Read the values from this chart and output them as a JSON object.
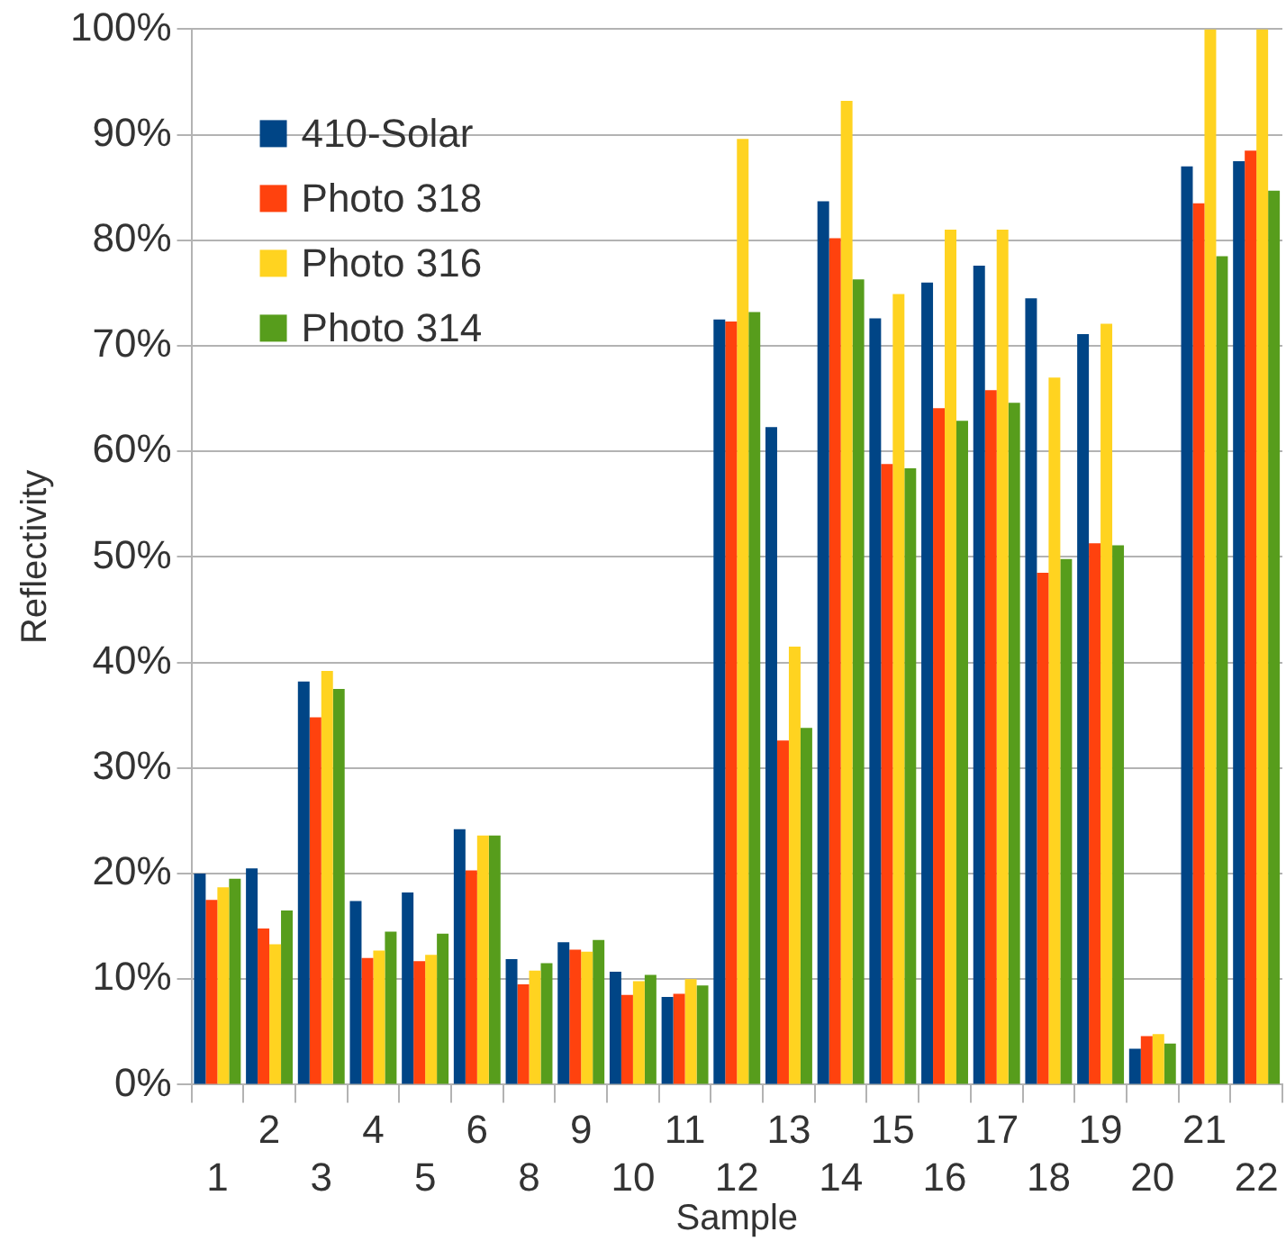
{
  "chart_data": {
    "type": "bar",
    "xlabel": "Sample",
    "ylabel": "Reflectivity",
    "categories": [
      "1",
      "2",
      "3",
      "4",
      "5",
      "6",
      "8",
      "9",
      "10",
      "11",
      "12",
      "13",
      "14",
      "15",
      "16",
      "17",
      "18",
      "19",
      "20",
      "21",
      "22"
    ],
    "series": [
      {
        "name": "410-Solar",
        "color": "#004586",
        "values": [
          20.0,
          20.5,
          38.2,
          17.4,
          18.2,
          24.2,
          11.9,
          13.5,
          10.7,
          8.3,
          72.5,
          62.3,
          83.7,
          72.6,
          76.0,
          77.6,
          74.5,
          71.1,
          3.4,
          87.0,
          87.5
        ]
      },
      {
        "name": "Photo 318",
        "color": "#ff420e",
        "values": [
          17.5,
          14.8,
          34.8,
          12.0,
          11.7,
          20.3,
          9.5,
          12.8,
          8.5,
          8.6,
          72.3,
          32.6,
          80.2,
          58.8,
          64.1,
          65.8,
          48.5,
          51.3,
          4.6,
          83.5,
          88.5
        ]
      },
      {
        "name": "Photo 316",
        "color": "#ffd320",
        "values": [
          18.7,
          13.3,
          39.2,
          12.7,
          12.3,
          23.6,
          10.8,
          12.6,
          9.8,
          10.0,
          89.6,
          41.5,
          93.2,
          74.9,
          81.0,
          81.0,
          67.0,
          72.1,
          4.8,
          100,
          100
        ]
      },
      {
        "name": "Photo 314",
        "color": "#579d1c",
        "values": [
          19.5,
          16.5,
          37.5,
          14.5,
          14.3,
          23.6,
          11.5,
          13.7,
          10.4,
          9.4,
          73.2,
          33.8,
          76.3,
          58.4,
          62.9,
          64.6,
          49.8,
          51.1,
          3.9,
          78.5,
          84.7
        ]
      }
    ],
    "ylim": [
      0,
      100
    ],
    "yticks": [
      {
        "value": 0,
        "label": "0%"
      },
      {
        "value": 10,
        "label": "10%"
      },
      {
        "value": 20,
        "label": "20%"
      },
      {
        "value": 30,
        "label": "30%"
      },
      {
        "value": 40,
        "label": "40%"
      },
      {
        "value": 50,
        "label": "50%"
      },
      {
        "value": 60,
        "label": "60%"
      },
      {
        "value": 70,
        "label": "70%"
      },
      {
        "value": 80,
        "label": "80%"
      },
      {
        "value": 90,
        "label": "90%"
      },
      {
        "value": 100,
        "label": "100%"
      }
    ],
    "grid": "y",
    "legend": "top left"
  }
}
